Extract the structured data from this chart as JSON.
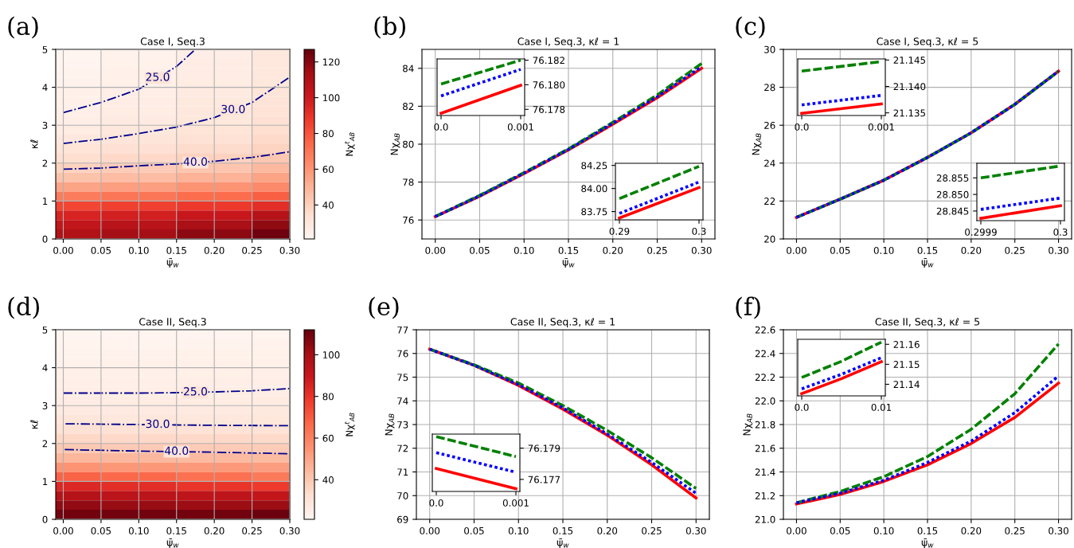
{
  "chart_data": [
    {
      "type": "heatmap",
      "title": "Case I, Seq.3",
      "xlabel": "ψ̄$_{w}$",
      "ylabel": "κℓ",
      "clabel": "Nχ$^{t}$$_{AB}$",
      "x": [
        0,
        0.1,
        0.2,
        0.3
      ],
      "y": [
        4.875,
        4.625,
        4.375,
        4.125,
        3.875,
        3.625,
        3.375,
        3.125,
        2.875,
        2.625,
        2.375,
        2.125,
        1.875,
        1.625,
        1.375,
        1.125,
        0.875,
        0.625,
        0.375,
        0.125
      ],
      "cells": [
        [
          21.3,
          22.9,
          25.5,
          29.0
        ],
        [
          21.8,
          23.4,
          26.0,
          29.4
        ],
        [
          22.4,
          24.0,
          26.6,
          29.8
        ],
        [
          23.0,
          24.6,
          27.2,
          30.3
        ],
        [
          23.6,
          25.2,
          27.9,
          31.0
        ],
        [
          24.3,
          26.0,
          28.6,
          31.8
        ],
        [
          25.0,
          26.8,
          29.4,
          32.7
        ],
        [
          25.9,
          27.8,
          30.3,
          33.6
        ],
        [
          26.9,
          29.3,
          31.5,
          34.8
        ],
        [
          29.2,
          31.2,
          33.2,
          36.5
        ],
        [
          31.5,
          33.5,
          35.6,
          39.2
        ],
        [
          35,
          37,
          39.3,
          43
        ],
        [
          39.5,
          41.5,
          44,
          48
        ],
        [
          45,
          47,
          50,
          55
        ],
        [
          55,
          57,
          60,
          64
        ],
        [
          68,
          70,
          73,
          77
        ],
        [
          84,
          86,
          88,
          92
        ],
        [
          96,
          98,
          102,
          108
        ],
        [
          104,
          107,
          112,
          118
        ],
        [
          110,
          113,
          119,
          125
        ]
      ],
      "clim": [
        21,
        127
      ],
      "cticks": [
        40,
        60,
        80,
        100,
        120
      ],
      "xlim": [
        -0.01,
        0.3
      ],
      "ylim": [
        0,
        5
      ],
      "xticks": [
        {
          "value": 0,
          "label": "0.00"
        },
        {
          "value": 0.05,
          "label": "0.05"
        },
        {
          "value": 0.1,
          "label": "0.10"
        },
        {
          "value": 0.15,
          "label": "0.15"
        },
        {
          "value": 0.2,
          "label": "0.20"
        },
        {
          "value": 0.25,
          "label": "0.25"
        },
        {
          "value": 0.3,
          "label": "0.30"
        }
      ],
      "yticks": [
        0,
        1,
        2,
        3,
        4,
        5
      ],
      "grid": true,
      "series": [
        {
          "type": "line",
          "color": "#00008b",
          "line_style": "dashdot",
          "x": [
            0,
            0.05,
            0.1,
            0.15,
            0.175
          ],
          "values": [
            3.33,
            3.6,
            3.95,
            4.55,
            5.0
          ]
        },
        {
          "type": "line",
          "color": "#00008b",
          "line_style": "dashdot",
          "x": [
            0,
            0.05,
            0.1,
            0.15,
            0.2,
            0.25,
            0.3
          ],
          "values": [
            2.52,
            2.63,
            2.78,
            2.95,
            3.2,
            3.6,
            4.27
          ]
        },
        {
          "type": "line",
          "color": "#00008b",
          "line_style": "dashdot",
          "x": [
            0,
            0.05,
            0.1,
            0.15,
            0.2,
            0.25,
            0.3
          ],
          "values": [
            1.84,
            1.87,
            1.93,
            1.98,
            2.05,
            2.15,
            2.3
          ]
        }
      ],
      "annotations": [
        "(a)",
        {
          "text": "25.0",
          "x": 0.125,
          "y": 4.25
        },
        {
          "text": "30.0",
          "x": 0.225,
          "y": 3.4
        },
        {
          "text": "40.0",
          "x": 0.175,
          "y": 2.015
        }
      ]
    },
    {
      "type": "line",
      "title": "Case I, Seq.3, κℓ = 1",
      "xlabel": "ψ̄$_{w}$",
      "ylabel": "Nχ$_{AB}$",
      "xlim": [
        -0.015,
        0.315
      ],
      "ylim": [
        75,
        85
      ],
      "xticks": [
        {
          "value": 0,
          "label": "0.00"
        },
        {
          "value": 0.05,
          "label": "0.05"
        },
        {
          "value": 0.1,
          "label": "0.10"
        },
        {
          "value": 0.15,
          "label": "0.15"
        },
        {
          "value": 0.2,
          "label": "0.20"
        },
        {
          "value": 0.25,
          "label": "0.25"
        },
        {
          "value": 0.3,
          "label": "0.30"
        }
      ],
      "yticks": [
        76,
        78,
        80,
        82,
        84
      ],
      "grid": true,
      "x": [
        0,
        0.05,
        0.1,
        0.15,
        0.2,
        0.25,
        0.3
      ],
      "series": [
        {
          "color": "#ff0000",
          "line_style": "solid",
          "values": [
            76.18,
            77.25,
            78.45,
            79.7,
            81.05,
            82.45,
            84.0
          ]
        },
        {
          "color": "#0000ff",
          "line_style": "dotted",
          "values": [
            76.18,
            77.27,
            78.47,
            79.72,
            81.1,
            82.5,
            84.08
          ]
        },
        {
          "color": "#008000",
          "line_style": "dashed",
          "values": [
            76.18,
            77.3,
            78.5,
            79.75,
            81.15,
            82.6,
            84.25
          ]
        }
      ],
      "annotations": [
        "(b)"
      ]
    },
    {
      "type": "line",
      "xlim": [
        -5e-05,
        0.00105
      ],
      "y2lim": [
        76.1775,
        76.1821
      ],
      "xticks": [
        {
          "value": 0,
          "label": "0.0"
        },
        0.001
      ],
      "y2ticks": [
        {
          "value": 76.178,
          "label": "76.178"
        },
        {
          "value": 76.18,
          "label": "76.180"
        },
        {
          "value": 76.182,
          "label": "76.182"
        }
      ],
      "x": [
        0,
        0.001
      ],
      "series": [
        {
          "color": "#ff0000",
          "line_style": "solid",
          "axis": "y2",
          "values": [
            76.17768,
            76.17996
          ]
        },
        {
          "color": "#0000ff",
          "line_style": "dotted",
          "axis": "y2",
          "values": [
            76.17909,
            76.18125
          ]
        },
        {
          "color": "#008000",
          "line_style": "dashed",
          "axis": "y2",
          "values": [
            76.18006,
            76.182
          ]
        }
      ]
    },
    {
      "type": "line",
      "xlim": [
        0.2895,
        0.3005
      ],
      "ylim": [
        83.66,
        84.273
      ],
      "xticks": [
        0.29,
        0.3
      ],
      "yticks": [
        83.75,
        {
          "value": 84.0,
          "label": "84.00"
        },
        84.25
      ],
      "x": [
        0.29,
        0.3
      ],
      "series": [
        {
          "color": "#ff0000",
          "line_style": "solid",
          "values": [
            83.68,
            84.01
          ]
        },
        {
          "color": "#0000ff",
          "line_style": "dotted",
          "values": [
            83.73,
            84.07
          ]
        },
        {
          "color": "#008000",
          "line_style": "dashed",
          "values": [
            83.89,
            84.24
          ]
        }
      ]
    },
    {
      "type": "line",
      "title": "Case I, Seq.3, κℓ = 5",
      "xlabel": "ψ̄$_{w}$",
      "ylabel": "Nχ$_{AB}$",
      "xlim": [
        -0.015,
        0.315
      ],
      "ylim": [
        20,
        30
      ],
      "xticks": [
        {
          "value": 0,
          "label": "0.00"
        },
        {
          "value": 0.05,
          "label": "0.05"
        },
        {
          "value": 0.1,
          "label": "0.10"
        },
        {
          "value": 0.15,
          "label": "0.15"
        },
        {
          "value": 0.2,
          "label": "0.20"
        },
        {
          "value": 0.25,
          "label": "0.25"
        },
        {
          "value": 0.3,
          "label": "0.30"
        }
      ],
      "yticks": [
        20,
        22,
        24,
        26,
        28,
        30
      ],
      "grid": true,
      "x": [
        0,
        0.05,
        0.1,
        0.15,
        0.2,
        0.25,
        0.3
      ],
      "series": [
        {
          "color": "#ff0000",
          "line_style": "solid",
          "values": [
            21.14,
            22.1,
            23.1,
            24.3,
            25.6,
            27.1,
            28.85
          ]
        },
        {
          "color": "#0000ff",
          "line_style": "dotted",
          "values": [
            21.14,
            22.1,
            23.1,
            24.3,
            25.6,
            27.1,
            28.85
          ]
        },
        {
          "color": "#008000",
          "line_style": "dashed",
          "values": [
            21.14,
            22.1,
            23.1,
            24.3,
            25.6,
            27.1,
            28.85
          ]
        }
      ],
      "annotations": [
        "(c)"
      ]
    },
    {
      "type": "line",
      "xlim": [
        -5e-05,
        0.00105
      ],
      "y2lim": [
        21.1345,
        21.1452
      ],
      "xticks": [
        {
          "value": 0,
          "label": "0.0"
        },
        0.001
      ],
      "y2ticks": [
        21.135,
        {
          "value": 21.14,
          "label": "21.140"
        },
        21.145
      ],
      "x": [
        0,
        0.001
      ],
      "series": [
        {
          "color": "#ff0000",
          "line_style": "solid",
          "axis": "y2",
          "values": [
            21.1349,
            21.1367
          ]
        },
        {
          "color": "#0000ff",
          "line_style": "dotted",
          "axis": "y2",
          "values": [
            21.1365,
            21.1383
          ]
        },
        {
          "color": "#008000",
          "line_style": "dashed",
          "axis": "y2",
          "values": [
            21.1429,
            21.1447
          ]
        }
      ]
    },
    {
      "type": "line",
      "xlim": [
        0.299895,
        0.300005
      ],
      "ylim": [
        28.8421,
        28.8594
      ],
      "xticks": [
        0.2999,
        0.3
      ],
      "yticks": [
        28.845,
        {
          "value": 28.85,
          "label": "28.850"
        },
        28.855
      ],
      "x": [
        0.2999,
        0.3
      ],
      "series": [
        {
          "color": "#ff0000",
          "line_style": "solid",
          "values": [
            28.8428,
            28.8466
          ]
        },
        {
          "color": "#0000ff",
          "line_style": "dotted",
          "values": [
            28.8455,
            28.8489
          ]
        },
        {
          "color": "#008000",
          "line_style": "dashed",
          "values": [
            28.855,
            28.8586
          ]
        }
      ]
    },
    {
      "type": "heatmap",
      "title": "Case II, Seq.3",
      "xlabel": "ψ̄$_{w}$",
      "ylabel": "κℓ",
      "clabel": "Nχ$^{t}$$_{AB}$",
      "x": [
        0,
        0.1,
        0.2,
        0.3
      ],
      "y": [
        4.875,
        4.625,
        4.375,
        4.125,
        3.875,
        3.625,
        3.375,
        3.125,
        2.875,
        2.625,
        2.375,
        2.125,
        1.875,
        1.625,
        1.375,
        1.125,
        0.875,
        0.625,
        0.375,
        0.125
      ],
      "cells": [
        [
          21.3,
          21.5,
          21.7,
          22.0
        ],
        [
          21.8,
          22.0,
          22.2,
          22.5
        ],
        [
          22.4,
          22.6,
          22.8,
          23.1
        ],
        [
          23.0,
          23.2,
          23.4,
          23.7
        ],
        [
          23.6,
          23.8,
          24.0,
          24.3
        ],
        [
          24.3,
          24.4,
          24.7,
          24.9
        ],
        [
          25.0,
          25.1,
          25.4,
          25.6
        ],
        [
          25.9,
          26.0,
          26.2,
          26.4
        ],
        [
          26.9,
          27.0,
          27.2,
          27.4
        ],
        [
          29.2,
          28.6,
          28.7,
          29.0
        ],
        [
          31.5,
          31.4,
          31.3,
          31.2
        ],
        [
          35,
          34.8,
          34.6,
          34.4
        ],
        [
          39.5,
          39.2,
          39.0,
          38.6
        ],
        [
          45,
          44.5,
          44,
          43.5
        ],
        [
          55,
          54,
          53,
          52
        ],
        [
          68,
          66.5,
          64.5,
          62
        ],
        [
          84,
          82,
          80,
          78
        ],
        [
          96,
          94,
          93,
          92
        ],
        [
          104,
          103,
          102,
          102
        ],
        [
          110,
          110,
          110,
          111
        ]
      ],
      "clim": [
        21,
        112
      ],
      "cticks": [
        40,
        60,
        80,
        100
      ],
      "xlim": [
        -0.01,
        0.3
      ],
      "ylim": [
        0,
        5
      ],
      "xticks": [
        {
          "value": 0,
          "label": "0.00"
        },
        {
          "value": 0.05,
          "label": "0.05"
        },
        {
          "value": 0.1,
          "label": "0.10"
        },
        {
          "value": 0.15,
          "label": "0.15"
        },
        {
          "value": 0.2,
          "label": "0.20"
        },
        {
          "value": 0.25,
          "label": "0.25"
        },
        {
          "value": 0.3,
          "label": "0.30"
        }
      ],
      "yticks": [
        0,
        1,
        2,
        3,
        4,
        5
      ],
      "grid": true,
      "series": [
        {
          "type": "line",
          "color": "#00008b",
          "line_style": "dashdot",
          "x": [
            0,
            0.1,
            0.15,
            0.2,
            0.25,
            0.3
          ],
          "values": [
            3.33,
            3.33,
            3.34,
            3.36,
            3.39,
            3.45
          ]
        },
        {
          "type": "line",
          "color": "#00008b",
          "line_style": "dashdot",
          "x": [
            0.003,
            0.1,
            0.15,
            0.2,
            0.3
          ],
          "values": [
            2.52,
            2.5,
            2.49,
            2.48,
            2.47
          ]
        },
        {
          "type": "line",
          "color": "#00008b",
          "line_style": "dashdot",
          "x": [
            0.002,
            0.1,
            0.2,
            0.3
          ],
          "values": [
            1.84,
            1.8,
            1.77,
            1.73
          ]
        }
      ],
      "annotations": [
        "(d)",
        {
          "text": "25.0",
          "x": 0.175,
          "y": 3.35
        },
        {
          "text": "30.0",
          "x": 0.125,
          "y": 2.495
        },
        {
          "text": "40.0",
          "x": 0.15,
          "y": 1.785
        }
      ]
    },
    {
      "type": "line",
      "title": "Case II, Seq.3, κℓ = 1",
      "xlabel": "ψ̄$_{w}$",
      "ylabel": "Nχ$_{AB}$",
      "xlim": [
        -0.015,
        0.315
      ],
      "ylim": [
        69,
        77
      ],
      "xticks": [
        {
          "value": 0,
          "label": "0.00"
        },
        {
          "value": 0.05,
          "label": "0.05"
        },
        {
          "value": 0.1,
          "label": "0.10"
        },
        {
          "value": 0.15,
          "label": "0.15"
        },
        {
          "value": 0.2,
          "label": "0.20"
        },
        {
          "value": 0.25,
          "label": "0.25"
        },
        {
          "value": 0.3,
          "label": "0.30"
        }
      ],
      "yticks": [
        69,
        70,
        71,
        72,
        73,
        74,
        75,
        76,
        77
      ],
      "grid": true,
      "x": [
        0,
        0.05,
        0.1,
        0.15,
        0.2,
        0.25,
        0.3
      ],
      "series": [
        {
          "color": "#ff0000",
          "line_style": "solid",
          "values": [
            76.18,
            75.5,
            74.65,
            73.65,
            72.55,
            71.3,
            69.9
          ]
        },
        {
          "color": "#0000ff",
          "line_style": "dotted",
          "values": [
            76.18,
            75.5,
            74.68,
            73.7,
            72.6,
            71.4,
            70.1
          ]
        },
        {
          "color": "#008000",
          "line_style": "dashed",
          "values": [
            76.18,
            75.52,
            74.75,
            73.8,
            72.75,
            71.6,
            70.3
          ]
        }
      ],
      "annotations": [
        "(e)"
      ]
    },
    {
      "type": "line",
      "xlim": [
        -5e-05,
        0.00105
      ],
      "y2lim": [
        76.17623,
        76.1799
      ],
      "xticks": [
        {
          "value": 0,
          "label": "0.0"
        },
        0.001
      ],
      "y2ticks": [
        76.177,
        76.179
      ],
      "x": [
        0,
        0.001
      ],
      "series": [
        {
          "color": "#ff0000",
          "line_style": "solid",
          "axis": "y2",
          "values": [
            76.1777,
            76.1764
          ]
        },
        {
          "color": "#0000ff",
          "line_style": "dotted",
          "axis": "y2",
          "values": [
            76.17871,
            76.17746
          ]
        },
        {
          "color": "#008000",
          "line_style": "dashed",
          "axis": "y2",
          "values": [
            76.17974,
            76.17846
          ]
        }
      ]
    },
    {
      "type": "line",
      "title": "Case II, Seq.3, κℓ = 5",
      "xlabel": "ψ̄$_{w}$",
      "ylabel": "Nχ$_{AB}$",
      "xlim": [
        -0.015,
        0.315
      ],
      "ylim": [
        21.0,
        22.6
      ],
      "xticks": [
        {
          "value": 0,
          "label": "0.00"
        },
        {
          "value": 0.05,
          "label": "0.05"
        },
        {
          "value": 0.1,
          "label": "0.10"
        },
        {
          "value": 0.15,
          "label": "0.15"
        },
        {
          "value": 0.2,
          "label": "0.20"
        },
        {
          "value": 0.25,
          "label": "0.25"
        },
        {
          "value": 0.3,
          "label": "0.30"
        }
      ],
      "yticks": [
        {
          "value": 21.0,
          "label": "21.0"
        },
        21.2,
        21.4,
        21.6,
        21.8,
        {
          "value": 22.0,
          "label": "22.0"
        },
        22.2,
        22.4,
        22.6
      ],
      "grid": true,
      "x": [
        0,
        0.05,
        0.1,
        0.15,
        0.2,
        0.25,
        0.3
      ],
      "series": [
        {
          "color": "#ff0000",
          "line_style": "solid",
          "values": [
            21.13,
            21.21,
            21.32,
            21.46,
            21.64,
            21.86,
            22.15
          ]
        },
        {
          "color": "#0000ff",
          "line_style": "dotted",
          "values": [
            21.14,
            21.22,
            21.33,
            21.48,
            21.66,
            21.9,
            22.21
          ]
        },
        {
          "color": "#008000",
          "line_style": "dashed",
          "values": [
            21.14,
            21.235,
            21.36,
            21.53,
            21.76,
            22.06,
            22.48
          ]
        }
      ],
      "annotations": [
        "(f)"
      ]
    },
    {
      "type": "line",
      "xlim": [
        -0.0005,
        0.0105
      ],
      "y2lim": [
        21.1342,
        21.1625
      ],
      "xticks": [
        {
          "value": 0,
          "label": "0.0"
        },
        0.01
      ],
      "y2ticks": [
        21.14,
        21.15,
        21.16
      ],
      "x": [
        0,
        0.005,
        0.01
      ],
      "series": [
        {
          "color": "#ff0000",
          "line_style": "solid",
          "axis": "y2",
          "values": [
            21.1353,
            21.1428,
            21.1513
          ]
        },
        {
          "color": "#0000ff",
          "line_style": "dotted",
          "axis": "y2",
          "values": [
            21.1377,
            21.145,
            21.1533
          ]
        },
        {
          "color": "#008000",
          "line_style": "dashed",
          "axis": "y2",
          "values": [
            21.1434,
            21.1515,
            21.1611
          ]
        }
      ]
    }
  ]
}
